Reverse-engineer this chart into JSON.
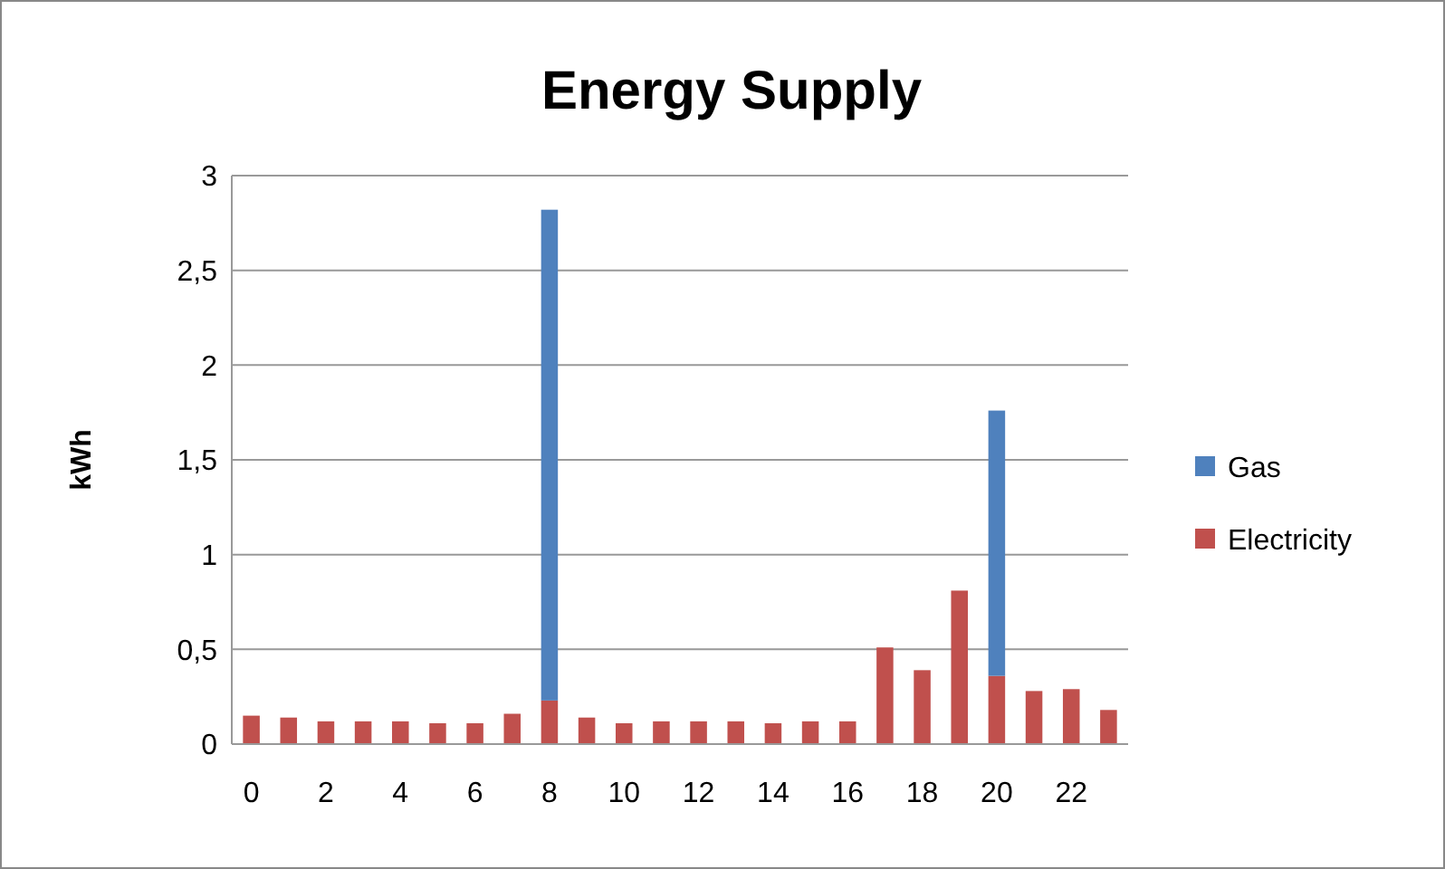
{
  "chart_data": {
    "type": "bar",
    "title": "Energy Supply",
    "ylabel": "kWh",
    "stacked": true,
    "categories": [
      "0",
      null,
      "2",
      null,
      "4",
      null,
      "6",
      null,
      "8",
      null,
      "10",
      null,
      "12",
      null,
      "14",
      null,
      "16",
      null,
      "18",
      null,
      "20",
      null,
      "22",
      null
    ],
    "series": [
      {
        "name": "Electricity",
        "color": "#c0504d",
        "values": [
          0.15,
          0.14,
          0.12,
          0.12,
          0.12,
          0.11,
          0.11,
          0.16,
          0.23,
          0.14,
          0.11,
          0.12,
          0.12,
          0.12,
          0.11,
          0.12,
          0.12,
          0.51,
          0.39,
          0.81,
          0.36,
          0.28,
          0.29,
          0.18
        ]
      },
      {
        "name": "Gas",
        "color": "#4f81bd",
        "values": [
          0,
          0,
          0,
          0,
          0,
          0,
          0,
          0,
          2.59,
          0,
          0,
          0,
          0,
          0,
          0,
          0,
          0,
          0,
          0,
          0,
          1.4,
          0,
          0,
          0
        ]
      }
    ],
    "ylim": [
      0,
      3
    ],
    "yticks": [
      0,
      {
        "value": 0.5,
        "label": "0,5"
      },
      1,
      {
        "value": 1.5,
        "label": "1,5"
      },
      2,
      {
        "value": 2.5,
        "label": "2,5"
      },
      3
    ],
    "grid": "y",
    "legend": "right"
  }
}
